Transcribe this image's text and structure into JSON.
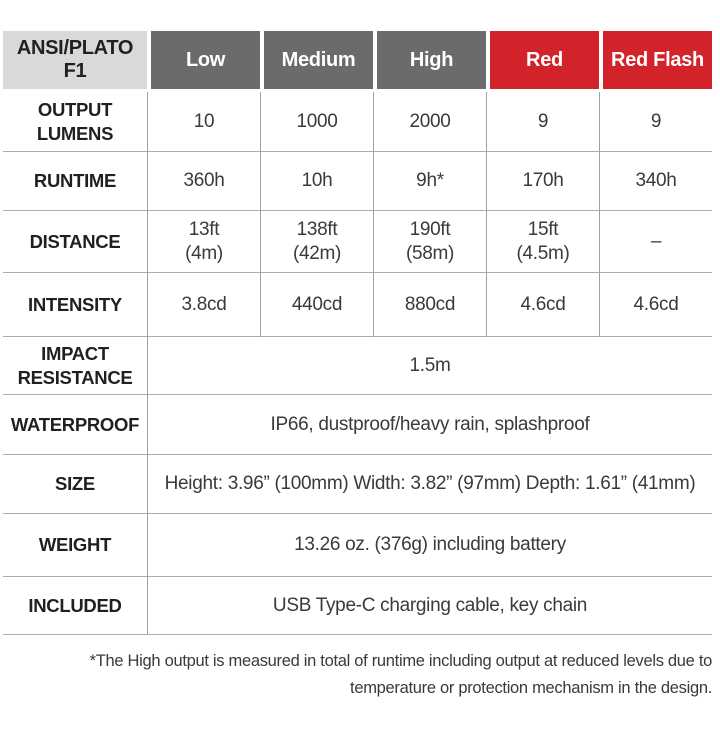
{
  "chart_data": {
    "type": "table",
    "title": "ANSI/PLATO F1 flashlight specification table",
    "corner_label": "ANSI/PLATO\nF1",
    "column_headers": [
      "Low",
      "Medium",
      "High",
      "Red",
      "Red Flash"
    ],
    "column_header_styles": [
      "gray",
      "gray",
      "gray",
      "red",
      "red"
    ],
    "rows": [
      {
        "label": "OUTPUT\nLUMENS",
        "values": [
          "10",
          "1000",
          "2000",
          "9",
          "9"
        ]
      },
      {
        "label": "RUNTIME",
        "values": [
          "360h",
          "10h",
          "9h*",
          "170h",
          "340h"
        ]
      },
      {
        "label": "DISTANCE",
        "values": [
          "13ft\n(4m)",
          "138ft\n(42m)",
          "190ft\n(58m)",
          "15ft\n(4.5m)",
          "–"
        ]
      },
      {
        "label": "INTENSITY",
        "values": [
          "3.8cd",
          "440cd",
          "880cd",
          "4.6cd",
          "4.6cd"
        ]
      }
    ],
    "merged_rows": [
      {
        "label": "IMPACT\nRESISTANCE",
        "value": "1.5m"
      },
      {
        "label": "WATERPROOF",
        "value": "IP66, dustproof/heavy rain, splashproof"
      },
      {
        "label": "SIZE",
        "value": "Height: 3.96” (100mm) Width: 3.82” (97mm) Depth: 1.61” (41mm)"
      },
      {
        "label": "WEIGHT",
        "value": "13.26 oz. (376g) including battery"
      },
      {
        "label": "INCLUDED",
        "value": "USB Type-C charging cable, key chain"
      }
    ],
    "footnote": "*The High output is measured in total of runtime including output at reduced levels due to\ntemperature or protection mechanism in the design.",
    "colors": {
      "header_gray": "#6b6b6d",
      "header_red": "#d2232a",
      "corner_light_gray": "#d9d9d9",
      "grid_line": "#a8a8a8",
      "text_dark": "#231f20"
    },
    "layout": {
      "grid": "on",
      "merged_value_rows_span_all_columns": true,
      "footnote_align": "right"
    }
  }
}
